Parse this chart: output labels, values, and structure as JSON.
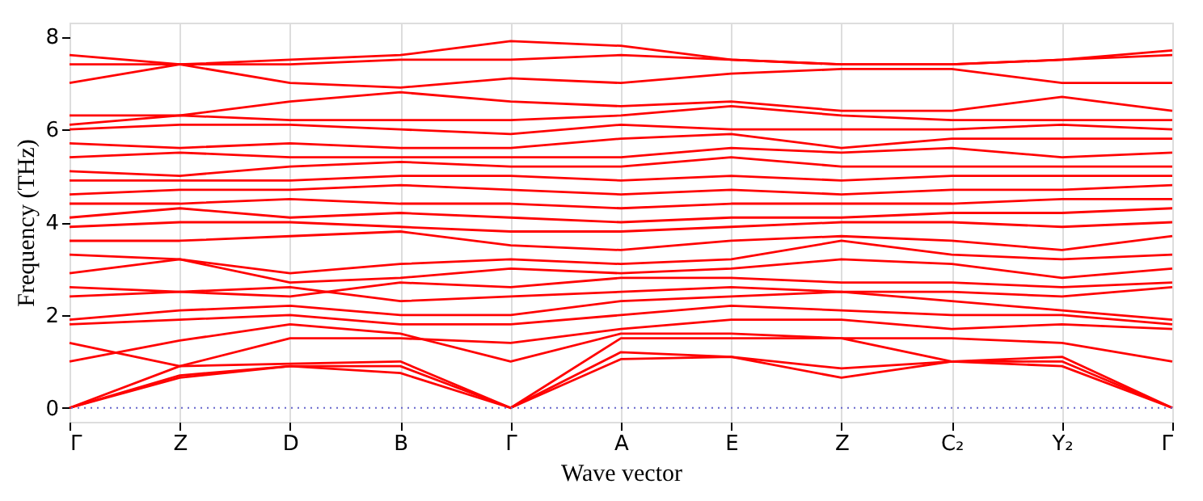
{
  "chart_data": {
    "type": "line",
    "xlabel": "Wave vector",
    "ylabel": "Frequency (THz)",
    "categories": [
      "Γ",
      "Z",
      "D",
      "B",
      "Γ",
      "A",
      "E",
      "Z",
      "C₂",
      "Y₂",
      "Γ"
    ],
    "ylim": [
      -0.3,
      8.3
    ],
    "yticks": [
      0,
      2,
      4,
      6,
      8
    ],
    "grid": "x",
    "legend": false,
    "marker": "none",
    "line_style": "solid",
    "ref_lines": [
      {
        "axis": "y",
        "value": 0,
        "color": "#6666cc",
        "line_style": "dotted"
      }
    ],
    "series": [
      {
        "color": "#ff0000",
        "values": [
          0,
          0.65,
          0.9,
          0.75,
          0,
          1.05,
          1.1,
          0.65,
          1.0,
          0.9,
          0
        ]
      },
      {
        "color": "#ff0000",
        "values": [
          0,
          0.7,
          0.9,
          0.9,
          0,
          1.2,
          1.1,
          0.85,
          1.0,
          1.0,
          0
        ]
      },
      {
        "color": "#ff0000",
        "values": [
          0,
          0.9,
          0.95,
          1.0,
          0,
          1.5,
          1.5,
          1.5,
          1.0,
          1.1,
          0
        ]
      },
      {
        "color": "#ff0000",
        "values": [
          1.0,
          1.45,
          1.8,
          1.6,
          1.0,
          1.6,
          1.6,
          1.5,
          1.5,
          1.4,
          1.0
        ]
      },
      {
        "color": "#ff0000",
        "values": [
          1.4,
          0.9,
          1.5,
          1.5,
          1.4,
          1.7,
          1.9,
          1.9,
          1.7,
          1.8,
          1.7
        ]
      },
      {
        "color": "#ff0000",
        "values": [
          1.8,
          1.9,
          2.0,
          1.8,
          1.8,
          2.0,
          2.2,
          2.1,
          2.0,
          2.0,
          1.8
        ]
      },
      {
        "color": "#ff0000",
        "values": [
          1.9,
          2.1,
          2.2,
          2.0,
          2.0,
          2.3,
          2.4,
          2.5,
          2.3,
          2.1,
          1.9
        ]
      },
      {
        "color": "#ff0000",
        "values": [
          2.4,
          2.5,
          2.6,
          2.3,
          2.4,
          2.5,
          2.6,
          2.5,
          2.5,
          2.4,
          2.6
        ]
      },
      {
        "color": "#ff0000",
        "values": [
          2.6,
          2.5,
          2.4,
          2.7,
          2.6,
          2.8,
          2.8,
          2.7,
          2.7,
          2.6,
          2.7
        ]
      },
      {
        "color": "#ff0000",
        "values": [
          2.9,
          3.2,
          2.7,
          2.8,
          3.0,
          2.9,
          3.0,
          3.2,
          3.1,
          2.8,
          3.0
        ]
      },
      {
        "color": "#ff0000",
        "values": [
          3.3,
          3.2,
          2.9,
          3.1,
          3.2,
          3.1,
          3.2,
          3.6,
          3.3,
          3.2,
          3.3
        ]
      },
      {
        "color": "#ff0000",
        "values": [
          3.6,
          3.6,
          3.7,
          3.8,
          3.5,
          3.4,
          3.6,
          3.7,
          3.6,
          3.4,
          3.7
        ]
      },
      {
        "color": "#ff0000",
        "values": [
          3.9,
          4.0,
          4.0,
          3.9,
          3.8,
          3.8,
          3.9,
          4.0,
          4.0,
          3.9,
          4.0
        ]
      },
      {
        "color": "#ff0000",
        "values": [
          4.1,
          4.3,
          4.1,
          4.2,
          4.1,
          4.0,
          4.1,
          4.1,
          4.2,
          4.2,
          4.3
        ]
      },
      {
        "color": "#ff0000",
        "values": [
          4.4,
          4.4,
          4.5,
          4.4,
          4.4,
          4.3,
          4.4,
          4.4,
          4.4,
          4.5,
          4.5
        ]
      },
      {
        "color": "#ff0000",
        "values": [
          4.6,
          4.7,
          4.7,
          4.8,
          4.7,
          4.6,
          4.7,
          4.6,
          4.7,
          4.7,
          4.8
        ]
      },
      {
        "color": "#ff0000",
        "values": [
          4.9,
          4.9,
          4.9,
          5.0,
          5.0,
          4.9,
          5.0,
          4.9,
          5.0,
          5.0,
          5.0
        ]
      },
      {
        "color": "#ff0000",
        "values": [
          5.1,
          5.0,
          5.2,
          5.3,
          5.2,
          5.2,
          5.4,
          5.2,
          5.2,
          5.2,
          5.2
        ]
      },
      {
        "color": "#ff0000",
        "values": [
          5.4,
          5.5,
          5.4,
          5.4,
          5.4,
          5.4,
          5.6,
          5.5,
          5.6,
          5.4,
          5.5
        ]
      },
      {
        "color": "#ff0000",
        "values": [
          5.7,
          5.6,
          5.7,
          5.6,
          5.6,
          5.8,
          5.9,
          5.6,
          5.8,
          5.8,
          5.8
        ]
      },
      {
        "color": "#ff0000",
        "values": [
          6.0,
          6.1,
          6.1,
          6.0,
          5.9,
          6.1,
          6.0,
          6.0,
          6.0,
          6.1,
          6.0
        ]
      },
      {
        "color": "#ff0000",
        "values": [
          6.1,
          6.3,
          6.2,
          6.2,
          6.2,
          6.3,
          6.5,
          6.3,
          6.2,
          6.2,
          6.2
        ]
      },
      {
        "color": "#ff0000",
        "values": [
          6.3,
          6.3,
          6.6,
          6.8,
          6.6,
          6.5,
          6.6,
          6.4,
          6.4,
          6.7,
          6.4
        ]
      },
      {
        "color": "#ff0000",
        "values": [
          7.0,
          7.4,
          7.0,
          6.9,
          7.1,
          7.0,
          7.2,
          7.3,
          7.3,
          7.0,
          7.0
        ]
      },
      {
        "color": "#ff0000",
        "values": [
          7.4,
          7.4,
          7.4,
          7.5,
          7.5,
          7.6,
          7.5,
          7.4,
          7.4,
          7.5,
          7.6
        ]
      },
      {
        "color": "#ff0000",
        "values": [
          7.6,
          7.4,
          7.5,
          7.6,
          7.9,
          7.8,
          7.5,
          7.4,
          7.4,
          7.5,
          7.7
        ]
      }
    ]
  }
}
